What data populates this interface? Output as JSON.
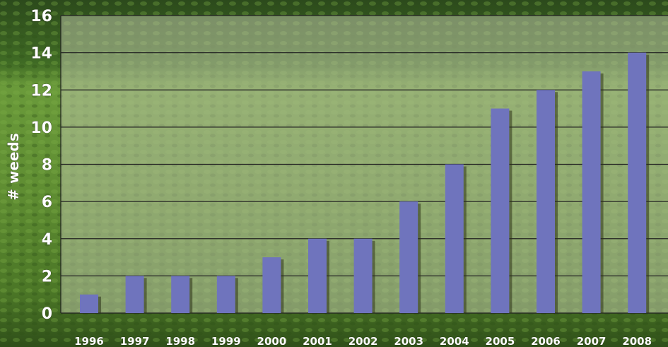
{
  "colors": {
    "bar": "#6f74bd",
    "bar_shadow": "#2e3318",
    "plot_overlay": "#b9c3a4",
    "gridline": "#222222",
    "label_text": "#ffffff"
  },
  "chart_data": {
    "type": "bar",
    "title": "",
    "xlabel": "",
    "ylabel": "# weeds",
    "categories": [
      "1996",
      "1997",
      "1998",
      "1999",
      "2000",
      "2001",
      "2002",
      "2003",
      "2004",
      "2005",
      "2006",
      "2007",
      "2008"
    ],
    "values": [
      1,
      2,
      2,
      2,
      3,
      4,
      4,
      6,
      8,
      11,
      12,
      13,
      14
    ],
    "ylim": [
      0,
      16
    ],
    "yticks": [
      "0",
      "2",
      "4",
      "6",
      "8",
      "10",
      "12",
      "14",
      "16"
    ],
    "grid": true,
    "legend": "none"
  }
}
